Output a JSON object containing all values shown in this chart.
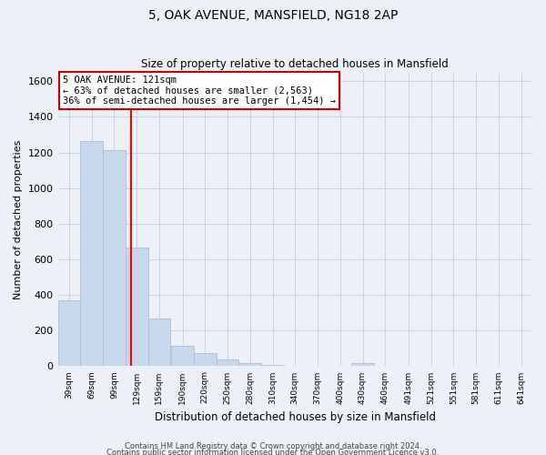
{
  "title": "5, OAK AVENUE, MANSFIELD, NG18 2AP",
  "subtitle": "Size of property relative to detached houses in Mansfield",
  "xlabel": "Distribution of detached houses by size in Mansfield",
  "ylabel": "Number of detached properties",
  "footnote1": "Contains HM Land Registry data © Crown copyright and database right 2024.",
  "footnote2": "Contains public sector information licensed under the Open Government Licence v3.0.",
  "bar_centers": [
    39,
    69,
    99,
    129,
    159,
    190,
    220,
    250,
    280,
    310,
    340,
    370,
    400,
    430,
    460,
    491,
    521,
    551,
    581,
    611,
    641
  ],
  "bar_labels": [
    "39sqm",
    "69sqm",
    "99sqm",
    "129sqm",
    "159sqm",
    "190sqm",
    "220sqm",
    "250sqm",
    "280sqm",
    "310sqm",
    "340sqm",
    "370sqm",
    "400sqm",
    "430sqm",
    "460sqm",
    "491sqm",
    "521sqm",
    "551sqm",
    "581sqm",
    "611sqm",
    "641sqm"
  ],
  "bar_values": [
    370,
    1265,
    1215,
    665,
    270,
    115,
    75,
    38,
    18,
    5,
    0,
    0,
    0,
    18,
    0,
    0,
    0,
    0,
    0,
    0,
    0
  ],
  "bar_color": "#c8d8ec",
  "bar_edge_color": "#a8c0d8",
  "ylim": [
    0,
    1650
  ],
  "yticks": [
    0,
    200,
    400,
    600,
    800,
    1000,
    1200,
    1400,
    1600
  ],
  "property_line_x": 121,
  "property_line_color": "red",
  "annotation_title": "5 OAK AVENUE: 121sqm",
  "annotation_line1": "← 63% of detached houses are smaller (2,563)",
  "annotation_line2": "36% of semi-detached houses are larger (1,454) →",
  "annotation_box_color": "white",
  "annotation_box_edge": "#cc0000",
  "bin_width": 30,
  "grid_color": "#c8d4e0",
  "background_color": "#edf1f7"
}
